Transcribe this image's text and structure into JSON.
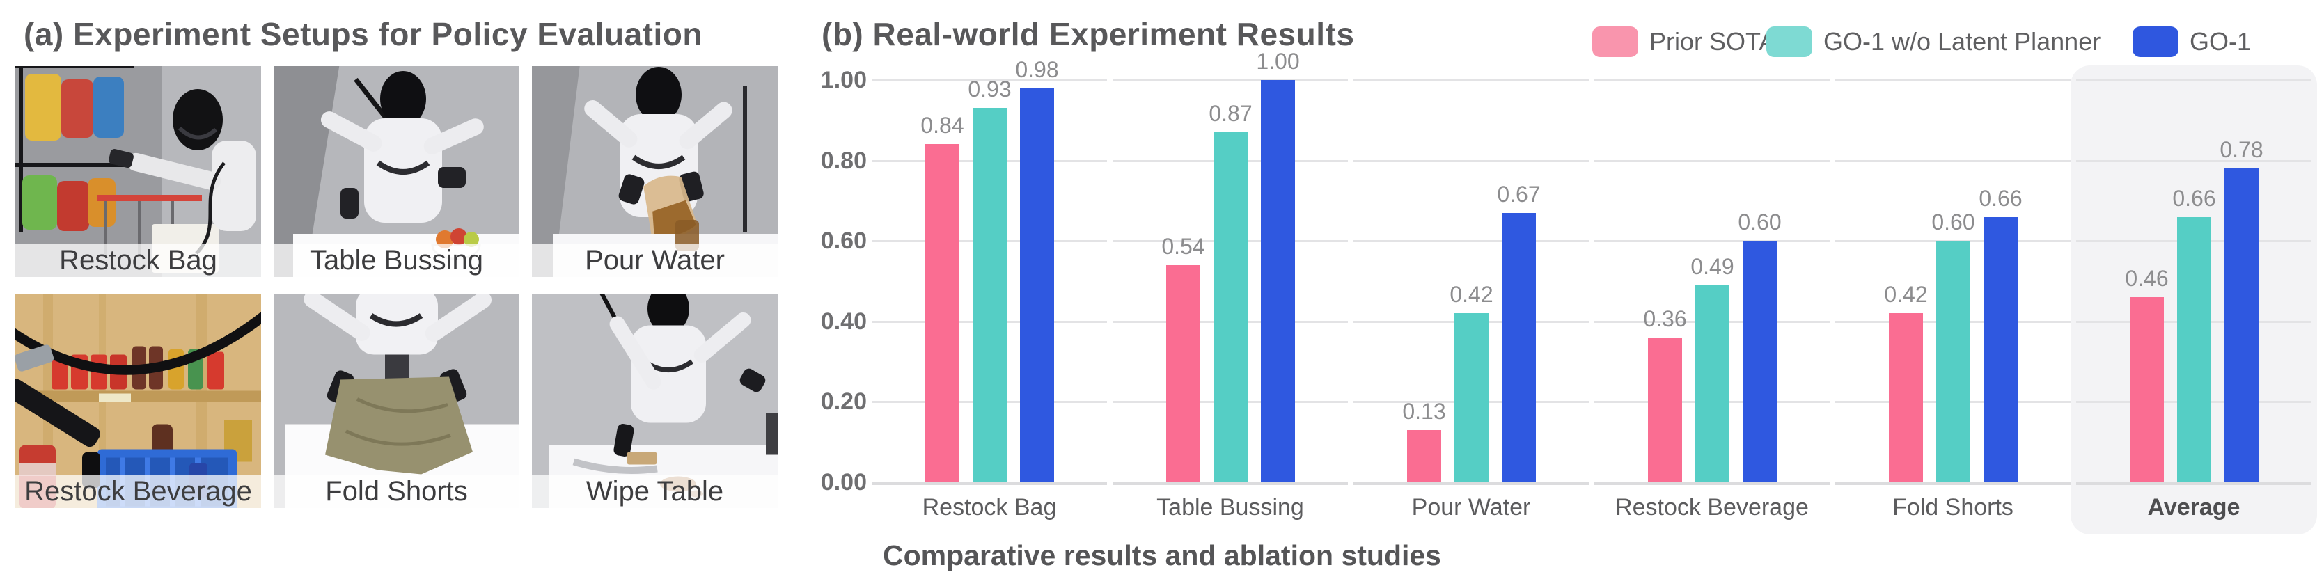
{
  "panel_a": {
    "title": "(a) Experiment Setups for Policy Evaluation",
    "photos": [
      {
        "label": "Restock Bag"
      },
      {
        "label": "Table Bussing"
      },
      {
        "label": "Pour Water"
      },
      {
        "label": "Restock Beverage"
      },
      {
        "label": "Fold Shorts"
      },
      {
        "label": "Wipe Table"
      }
    ]
  },
  "panel_b": {
    "title": "(b) Real-world Experiment Results"
  },
  "caption": "Comparative results and ablation studies",
  "legend": [
    {
      "label": "Prior SOTA",
      "swatch_color": "#F995AD"
    },
    {
      "label": "GO-1 w/o Latent Planner",
      "swatch_color": "#7EDAD3"
    },
    {
      "label": "GO-1",
      "swatch_color": "#2F57DF"
    }
  ],
  "chart_data": {
    "type": "bar",
    "title": "(b) Real-world Experiment Results",
    "categories": [
      "Restock Bag",
      "Table Bussing",
      "Pour Water",
      "Restock Beverage",
      "Fold Shorts",
      "Average"
    ],
    "series": [
      {
        "name": "Prior SOTA",
        "color": "#FA6D92",
        "values": [
          0.84,
          0.54,
          0.13,
          0.36,
          0.42,
          0.46
        ]
      },
      {
        "name": "GO-1 w/o Latent Planner",
        "color": "#55CEC5",
        "values": [
          0.93,
          0.87,
          0.42,
          0.49,
          0.6,
          0.66
        ]
      },
      {
        "name": "GO-1",
        "color": "#2F58E0",
        "values": [
          0.98,
          1.0,
          0.67,
          0.6,
          0.66,
          0.78
        ]
      }
    ],
    "xlabel": "",
    "ylabel": "",
    "ylim": [
      0,
      1.0
    ],
    "yticks": [
      0.0,
      0.2,
      0.4,
      0.6,
      0.8,
      1.0
    ],
    "grid": "horizontal",
    "value_labels": true,
    "legend_position": "top-right",
    "highlight_category": "Average"
  }
}
